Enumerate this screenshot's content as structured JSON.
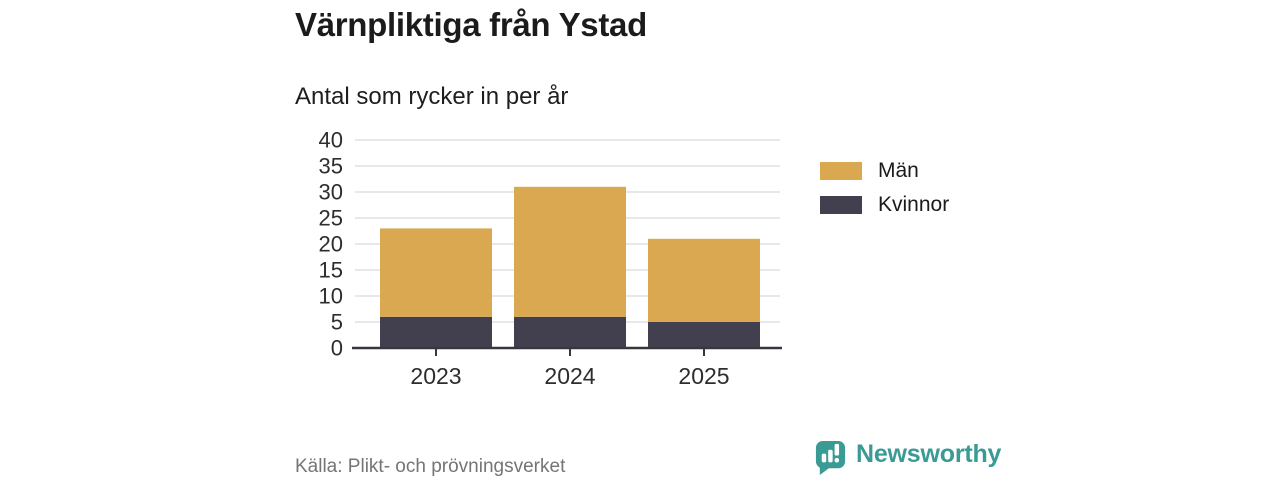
{
  "header": {
    "title": "Värnpliktiga från Ystad",
    "subtitle": "Antal som rycker in per år"
  },
  "chart_data": {
    "type": "bar",
    "stacked": true,
    "categories": [
      "2023",
      "2024",
      "2025"
    ],
    "series": [
      {
        "name": "Män",
        "color": "#d9a850",
        "values": [
          17,
          25,
          16
        ]
      },
      {
        "name": "Kvinnor",
        "color": "#42404f",
        "values": [
          6,
          6,
          5
        ]
      }
    ],
    "stack_order_bottom_first": [
      "Kvinnor",
      "Män"
    ],
    "totals": [
      23,
      31,
      21
    ],
    "title": "Värnpliktiga från Ystad",
    "subtitle": "Antal som rycker in per år",
    "xlabel": "",
    "ylabel": "",
    "ylim": [
      0,
      40
    ],
    "yticks": [
      0,
      5,
      10,
      15,
      20,
      25,
      30,
      35,
      40
    ],
    "grid": true,
    "gridline_color": "#dadada",
    "axis_line_color": "#38363f",
    "tick_label_color": "#2d2d2d",
    "legend_position": "right"
  },
  "legend": {
    "items": [
      {
        "label": "Män",
        "color": "#d9a850"
      },
      {
        "label": "Kvinnor",
        "color": "#42404f"
      }
    ]
  },
  "footer": {
    "source": "Källa: Plikt- och prövningsverket",
    "brand": "Newsworthy",
    "brand_color": "#3a9a94",
    "brand_icon": "bar-chart-speech-bubble-icon"
  }
}
